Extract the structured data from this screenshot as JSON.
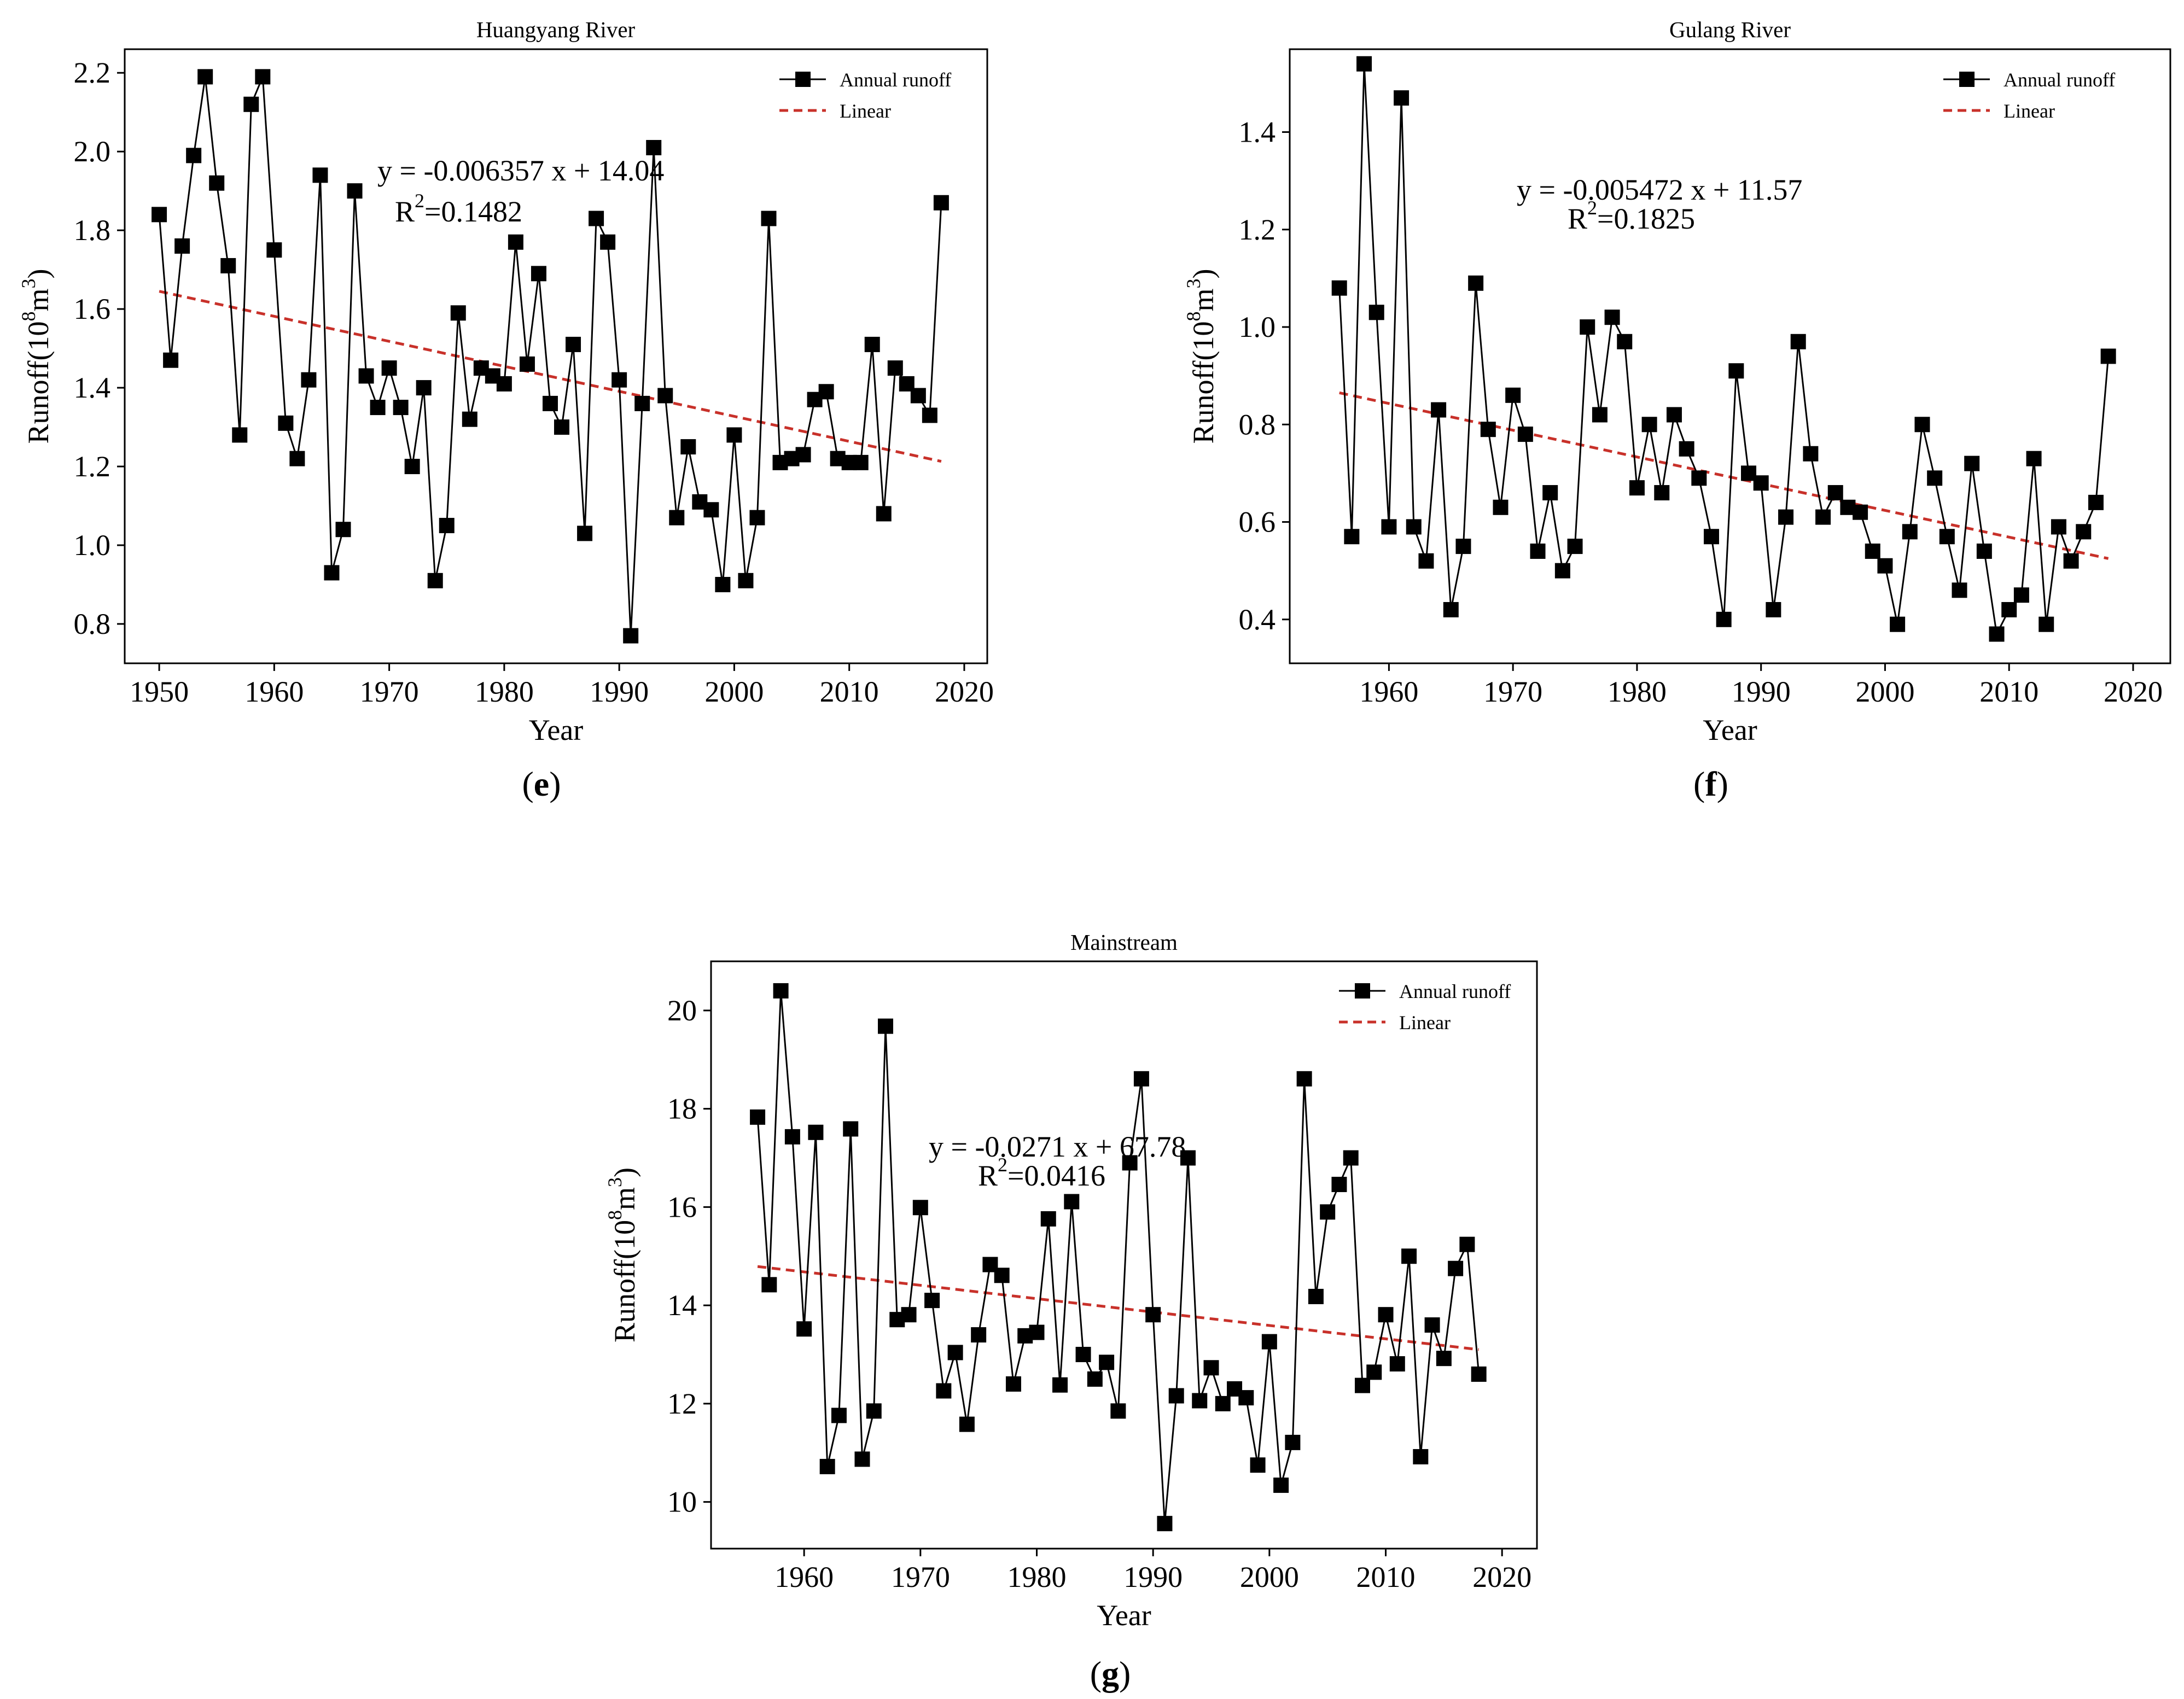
{
  "chart_data": [
    {
      "type": "line",
      "panel_label": "e",
      "title": "Huangyang River",
      "xlabel": "Year",
      "ylabel_prefix": "Runoff(10",
      "ylabel_sup1": "8",
      "ylabel_mid": "m",
      "ylabel_sup2": "3",
      "ylabel_suffix": ")",
      "xlim": [
        1947,
        2022
      ],
      "ylim": [
        0.7,
        2.26
      ],
      "xticks": [
        1950,
        1960,
        1970,
        1980,
        1990,
        2000,
        2010,
        2020
      ],
      "yticks": [
        "0.8",
        "1.0",
        "1.2",
        "1.4",
        "1.6",
        "1.8",
        "2.0",
        "2.2"
      ],
      "legend": [
        "Annual runoff",
        "Linear"
      ],
      "equation": "y = -0.006357 x + 14.04",
      "r2_label": "R",
      "r2_sup": "2",
      "r2_value": "=0.1482",
      "trend": {
        "x0": 1950,
        "y0": 1.645,
        "x1": 2018,
        "y1": 1.213
      },
      "series": [
        {
          "name": "Annual runoff",
          "x": [
            1950,
            1951,
            1952,
            1953,
            1954,
            1955,
            1956,
            1957,
            1958,
            1959,
            1960,
            1961,
            1962,
            1963,
            1964,
            1965,
            1966,
            1967,
            1968,
            1969,
            1970,
            1971,
            1972,
            1973,
            1974,
            1975,
            1976,
            1977,
            1978,
            1979,
            1980,
            1981,
            1982,
            1983,
            1984,
            1985,
            1986,
            1987,
            1988,
            1989,
            1990,
            1991,
            1992,
            1993,
            1994,
            1995,
            1996,
            1997,
            1998,
            1999,
            2000,
            2001,
            2002,
            2003,
            2004,
            2005,
            2006,
            2007,
            2008,
            2009,
            2010,
            2011,
            2012,
            2013,
            2014,
            2015,
            2016,
            2017,
            2018
          ],
          "values": [
            1.84,
            1.47,
            1.76,
            1.99,
            2.19,
            1.92,
            1.71,
            1.28,
            2.12,
            2.19,
            1.75,
            1.31,
            1.22,
            1.42,
            1.94,
            0.93,
            1.04,
            1.9,
            1.43,
            1.35,
            1.45,
            1.35,
            1.2,
            1.4,
            0.91,
            1.05,
            1.59,
            1.32,
            1.45,
            1.43,
            1.41,
            1.77,
            1.46,
            1.69,
            1.36,
            1.3,
            1.51,
            1.03,
            1.83,
            1.77,
            1.42,
            0.77,
            1.36,
            2.01,
            1.38,
            1.07,
            1.25,
            1.11,
            1.09,
            0.9,
            1.28,
            0.91,
            1.07,
            1.83,
            1.21,
            1.22,
            1.23,
            1.37,
            1.39,
            1.22,
            1.21,
            1.21,
            1.51,
            1.08,
            1.45,
            1.41,
            1.38,
            1.33,
            1.87
          ]
        }
      ]
    },
    {
      "type": "line",
      "panel_label": "f",
      "title": "Gulang River",
      "xlabel": "Year",
      "ylabel_prefix": "Runoff(10",
      "ylabel_sup1": "8",
      "ylabel_mid": "m",
      "ylabel_sup2": "3",
      "ylabel_suffix": ")",
      "xlim": [
        1952,
        2023
      ],
      "ylim": [
        0.31,
        1.57
      ],
      "xticks": [
        1960,
        1970,
        1980,
        1990,
        2000,
        2010,
        2020
      ],
      "yticks": [
        "0.4",
        "0.6",
        "0.8",
        "1.0",
        "1.2",
        "1.4"
      ],
      "legend": [
        "Annual runoff",
        "Linear"
      ],
      "equation": "y = -0.005472 x + 11.57",
      "r2_label": "R",
      "r2_sup": "2",
      "r2_value": "=0.1825",
      "trend": {
        "x0": 1956,
        "y0": 0.865,
        "x1": 2018,
        "y1": 0.525
      },
      "series": [
        {
          "name": "Annual runoff",
          "x": [
            1956,
            1957,
            1958,
            1959,
            1960,
            1961,
            1962,
            1963,
            1964,
            1965,
            1966,
            1967,
            1968,
            1969,
            1970,
            1971,
            1972,
            1973,
            1974,
            1975,
            1976,
            1977,
            1978,
            1979,
            1980,
            1981,
            1982,
            1983,
            1984,
            1985,
            1986,
            1987,
            1988,
            1989,
            1990,
            1991,
            1992,
            1993,
            1994,
            1995,
            1996,
            1997,
            1998,
            1999,
            2000,
            2001,
            2002,
            2003,
            2004,
            2005,
            2006,
            2007,
            2008,
            2009,
            2010,
            2011,
            2012,
            2013,
            2014,
            2015,
            2016,
            2017,
            2018
          ],
          "values": [
            1.08,
            0.57,
            1.54,
            1.03,
            0.59,
            1.47,
            0.59,
            0.52,
            0.83,
            0.42,
            0.55,
            1.09,
            0.79,
            0.63,
            0.86,
            0.78,
            0.54,
            0.66,
            0.5,
            0.55,
            1.0,
            0.82,
            1.02,
            0.97,
            0.67,
            0.8,
            0.66,
            0.82,
            0.75,
            0.69,
            0.57,
            0.4,
            0.91,
            0.7,
            0.68,
            0.42,
            0.61,
            0.97,
            0.74,
            0.61,
            0.66,
            0.63,
            0.62,
            0.54,
            0.51,
            0.39,
            0.58,
            0.8,
            0.69,
            0.57,
            0.46,
            0.72,
            0.54,
            0.37,
            0.42,
            0.45,
            0.73,
            0.39,
            0.59,
            0.52,
            0.58,
            0.64,
            0.94
          ]
        }
      ]
    },
    {
      "type": "line",
      "panel_label": "g",
      "title": "Mainstream",
      "xlabel": "Year",
      "ylabel_prefix": "Runoff(10",
      "ylabel_sup1": "8",
      "ylabel_mid": "m",
      "ylabel_sup2": "3",
      "ylabel_suffix": ")",
      "xlim": [
        1952,
        2023
      ],
      "ylim": [
        9.05,
        21.0
      ],
      "xticks": [
        1960,
        1970,
        1980,
        1990,
        2000,
        2010,
        2020
      ],
      "yticks": [
        "10",
        "12",
        "14",
        "16",
        "18",
        "20"
      ],
      "legend": [
        "Annual runoff",
        "Linear"
      ],
      "equation": "y = -0.0271 x + 67.78",
      "r2_label": "R",
      "r2_sup": "2",
      "r2_value": "=0.0416",
      "trend": {
        "x0": 1956,
        "y0": 14.79,
        "x1": 2018,
        "y1": 13.1
      },
      "series": [
        {
          "name": "Annual runoff",
          "x": [
            1956,
            1957,
            1958,
            1959,
            1960,
            1961,
            1962,
            1963,
            1964,
            1965,
            1966,
            1967,
            1968,
            1969,
            1970,
            1971,
            1972,
            1973,
            1974,
            1975,
            1976,
            1977,
            1978,
            1979,
            1980,
            1981,
            1982,
            1983,
            1984,
            1985,
            1986,
            1987,
            1988,
            1989,
            1990,
            1991,
            1992,
            1993,
            1994,
            1995,
            1996,
            1997,
            1998,
            1999,
            2000,
            2001,
            2002,
            2003,
            2004,
            2005,
            2006,
            2007,
            2008,
            2009,
            2010,
            2011,
            2012,
            2013,
            2014,
            2015,
            2016,
            2017,
            2018
          ],
          "values": [
            17.83,
            14.42,
            20.4,
            17.43,
            13.52,
            17.52,
            10.72,
            11.76,
            17.59,
            10.87,
            11.85,
            19.68,
            13.71,
            13.81,
            15.99,
            14.1,
            12.26,
            13.04,
            11.58,
            13.4,
            14.83,
            14.61,
            12.4,
            13.38,
            13.45,
            15.76,
            12.38,
            16.11,
            13.0,
            12.5,
            12.84,
            11.85,
            16.9,
            18.61,
            13.81,
            9.56,
            12.16,
            17.0,
            12.06,
            12.73,
            12.0,
            12.3,
            12.12,
            10.75,
            13.26,
            10.34,
            11.21,
            18.61,
            14.18,
            15.9,
            16.46,
            17.0,
            12.37,
            12.64,
            13.81,
            12.81,
            15.0,
            10.92,
            13.6,
            12.92,
            14.75,
            15.24,
            12.6
          ]
        }
      ]
    }
  ],
  "colors": {
    "series": "#000000",
    "trend": "#c8312a",
    "frame": "#000000"
  }
}
